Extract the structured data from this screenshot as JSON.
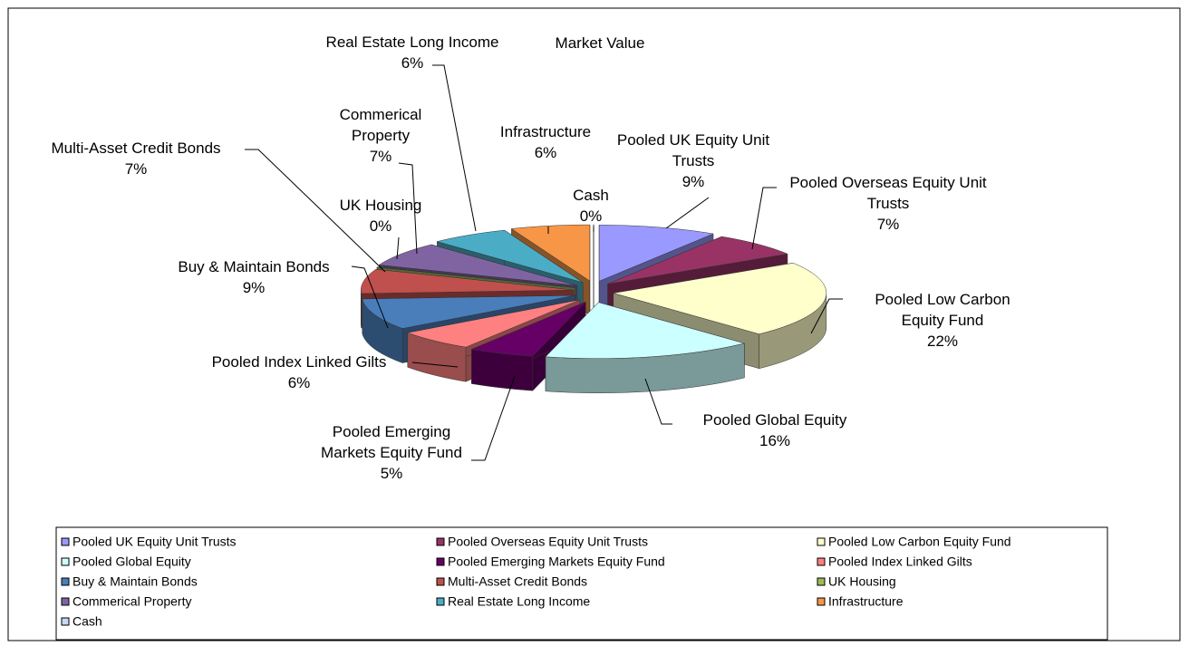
{
  "chart_data": {
    "type": "pie",
    "title": "Market Value",
    "categories": [
      "Pooled UK Equity Unit Trusts",
      "Pooled Overseas Equity Unit Trusts",
      "Pooled Low Carbon Equity Fund",
      "Pooled Global Equity",
      "Pooled Emerging Markets Equity Fund",
      "Pooled Index Linked Gilts",
      "Buy & Maintain Bonds",
      "Multi-Asset Credit Bonds",
      "UK Housing",
      "Commerical Property",
      "Real Estate Long Income",
      "Infrastructure",
      "Cash"
    ],
    "values": [
      9,
      7,
      22,
      16,
      5,
      6,
      9,
      7,
      0,
      7,
      6,
      6,
      0
    ],
    "value_labels": [
      "9%",
      "7%",
      "22%",
      "16%",
      "5%",
      "6%",
      "9%",
      "7%",
      "0%",
      "7%",
      "6%",
      "6%",
      "0%"
    ],
    "colors": [
      "#9999ff",
      "#993366",
      "#ffffcc",
      "#ccffff",
      "#660066",
      "#ff8080",
      "#4a7ebb",
      "#c0504d",
      "#9bbb59",
      "#8064a2",
      "#4bacc6",
      "#f79646",
      "#c5d9f1"
    ],
    "legend": "bottom"
  }
}
